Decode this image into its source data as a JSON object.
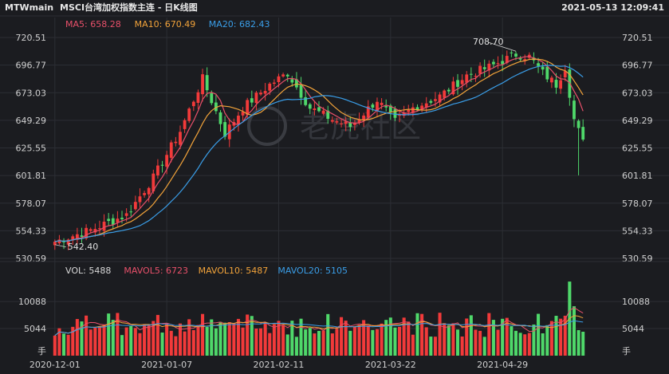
{
  "header": {
    "symbol": "MTWmain",
    "title": "MSCI台湾加权指数主连 - 日K线图",
    "datetime": "2021-05-13 12:09:41"
  },
  "watermark": "老虎社区",
  "colors": {
    "up": "#f23a3a",
    "down": "#4fd86a",
    "ma5": "#e8506a",
    "ma10": "#f2a33a",
    "ma20": "#3a9ee8",
    "background": "#1b1c20",
    "grid": "#2c2e34"
  },
  "chart_data": {
    "type": "candlestick",
    "price_axis": {
      "ticks": [
        "720.51",
        "696.77",
        "673.03",
        "649.29",
        "625.55",
        "601.81",
        "578.07",
        "554.33",
        "530.59"
      ],
      "ylim": [
        530.59,
        720.51
      ]
    },
    "volume_axis": {
      "ticks": [
        "10088",
        "5044"
      ],
      "unit_label": "手",
      "ylim": [
        0,
        15000
      ]
    },
    "date_labels": [
      "2020-12-01",
      "2021-01-07",
      "2021-02-11",
      "2021-03-22",
      "2021-04-29"
    ],
    "date_label_bar_index": [
      0,
      25,
      50,
      75,
      100
    ],
    "ma_legend": [
      {
        "label": "MA5: 658.28",
        "color": "#e8506a"
      },
      {
        "label": "MA10: 670.49",
        "color": "#f2a33a"
      },
      {
        "label": "MA20: 682.43",
        "color": "#3a9ee8"
      }
    ],
    "vol_legend": [
      {
        "label": "VOL: 5488",
        "color": "#d8d8d8"
      },
      {
        "label": "MAVOL5: 6723",
        "color": "#e8506a"
      },
      {
        "label": "MAVOL10: 5487",
        "color": "#f2a33a"
      },
      {
        "label": "MAVOL20: 5105",
        "color": "#3a9ee8"
      }
    ],
    "annotations": [
      {
        "text": "708.70",
        "bar_index": 103,
        "value": 708.7
      },
      {
        "text": "542.40",
        "bar_index": 0,
        "value": 542.4
      }
    ],
    "key_prices": [
      {
        "bar_index": 0,
        "close": 545
      },
      {
        "bar_index": 8,
        "close": 555
      },
      {
        "bar_index": 16,
        "close": 568
      },
      {
        "bar_index": 22,
        "close": 600
      },
      {
        "bar_index": 28,
        "close": 640
      },
      {
        "bar_index": 33,
        "close": 685
      },
      {
        "bar_index": 38,
        "close": 638
      },
      {
        "bar_index": 42,
        "close": 660
      },
      {
        "bar_index": 48,
        "close": 680
      },
      {
        "bar_index": 52,
        "close": 690
      },
      {
        "bar_index": 57,
        "close": 660
      },
      {
        "bar_index": 62,
        "close": 650
      },
      {
        "bar_index": 66,
        "close": 644
      },
      {
        "bar_index": 72,
        "close": 667
      },
      {
        "bar_index": 76,
        "close": 648
      },
      {
        "bar_index": 80,
        "close": 660
      },
      {
        "bar_index": 86,
        "close": 670
      },
      {
        "bar_index": 92,
        "close": 688
      },
      {
        "bar_index": 97,
        "close": 695
      },
      {
        "bar_index": 103,
        "close": 706
      },
      {
        "bar_index": 106,
        "close": 704
      },
      {
        "bar_index": 109,
        "close": 690
      },
      {
        "bar_index": 112,
        "close": 680
      },
      {
        "bar_index": 114,
        "close": 695
      },
      {
        "bar_index": 116,
        "close": 650
      },
      {
        "bar_index": 118,
        "close": 630
      }
    ],
    "bar_count": 119
  }
}
